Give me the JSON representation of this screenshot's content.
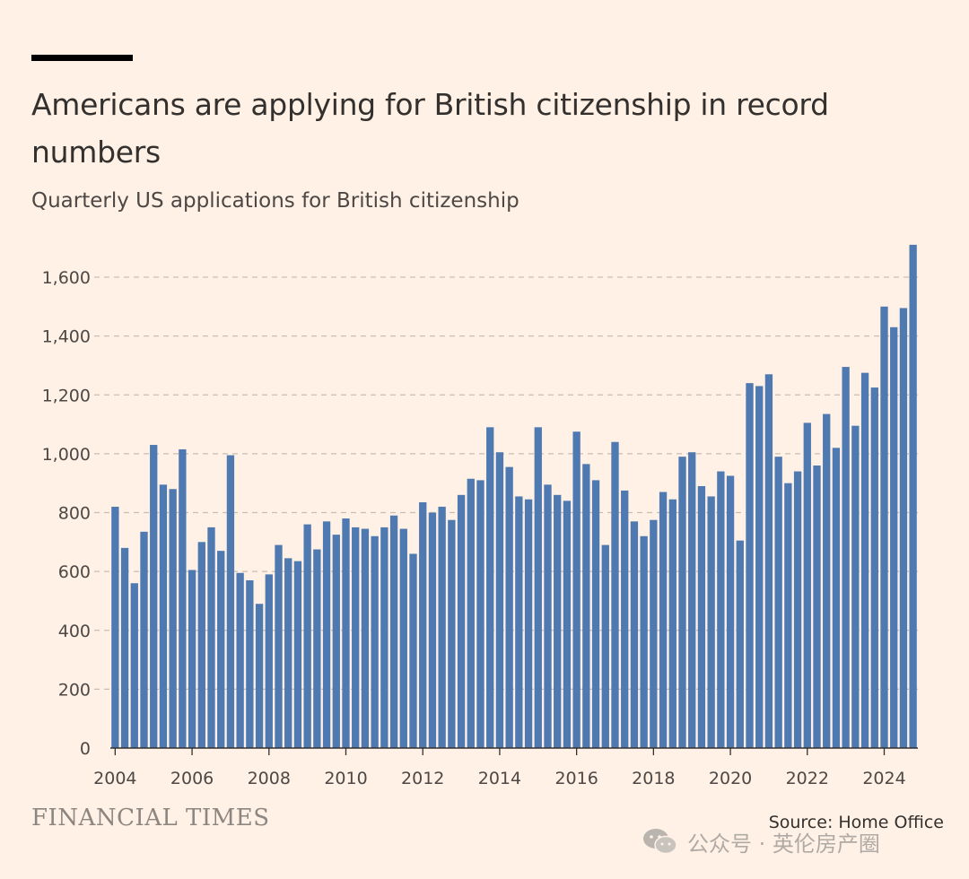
{
  "header": {
    "title": "Americans are applying for British citizenship in record numbers",
    "subtitle": "Quarterly US applications for British citizenship"
  },
  "footer": {
    "brand": "FINANCIAL TIMES",
    "source": "Source: Home Office",
    "watermark": "公众号 · 英伦房产圈",
    "watermark_icon": "wechat-icon"
  },
  "colors": {
    "background": "#fff1e5",
    "bar": "#4e79b1",
    "gridline": "#c9beb4",
    "axis": "#33302e",
    "text": "#33302e"
  },
  "chart_data": {
    "type": "bar",
    "title": "Americans are applying for British citizenship in record numbers",
    "subtitle": "Quarterly US applications for British citizenship",
    "frequency": "quarterly",
    "start": "2004 Q1",
    "xlabel": "",
    "ylabel": "",
    "ylim": [
      0,
      1700
    ],
    "yticks": [
      0,
      200,
      400,
      600,
      800,
      1000,
      1200,
      1400,
      1600
    ],
    "ytick_labels": [
      "0",
      "200",
      "400",
      "600",
      "800",
      "1,000",
      "1,200",
      "1,400",
      "1,600"
    ],
    "xticks": [
      "2004",
      "2006",
      "2008",
      "2010",
      "2012",
      "2014",
      "2016",
      "2018",
      "2020",
      "2022",
      "2024"
    ],
    "grid": true,
    "values": [
      820,
      680,
      560,
      735,
      1030,
      895,
      880,
      1015,
      605,
      700,
      750,
      670,
      995,
      595,
      570,
      490,
      590,
      690,
      645,
      635,
      760,
      675,
      770,
      725,
      780,
      750,
      745,
      720,
      750,
      790,
      745,
      660,
      835,
      800,
      820,
      775,
      860,
      915,
      910,
      1090,
      1005,
      955,
      855,
      845,
      1090,
      895,
      860,
      840,
      1075,
      965,
      910,
      690,
      1040,
      875,
      770,
      720,
      775,
      870,
      845,
      990,
      1005,
      890,
      855,
      940,
      925,
      705,
      1240,
      1230,
      1270,
      990,
      900,
      940,
      1105,
      960,
      1135,
      1020,
      1295,
      1095,
      1275,
      1225,
      1500,
      1430,
      1495,
      1710
    ]
  }
}
